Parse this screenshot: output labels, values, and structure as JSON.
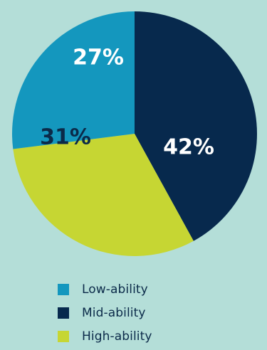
{
  "chart_data": {
    "type": "pie",
    "title": "",
    "slices": [
      {
        "label": "Low-ability",
        "value": 27,
        "display": "27%",
        "color": "#1497be",
        "text_color": "#ffffff"
      },
      {
        "label": "Mid-ability",
        "value": 42,
        "display": "42%",
        "color": "#07294d",
        "text_color": "#ffffff"
      },
      {
        "label": "High-ability",
        "value": 31,
        "display": "31%",
        "color": "#c6d633",
        "text_color": "#0b2a49"
      }
    ],
    "legend": {
      "placement": "bottom",
      "items": [
        {
          "label": "Low-ability",
          "color": "#1497be"
        },
        {
          "label": "Mid-ability",
          "color": "#07294d"
        },
        {
          "label": "High-ability",
          "color": "#c6d633"
        }
      ]
    }
  }
}
